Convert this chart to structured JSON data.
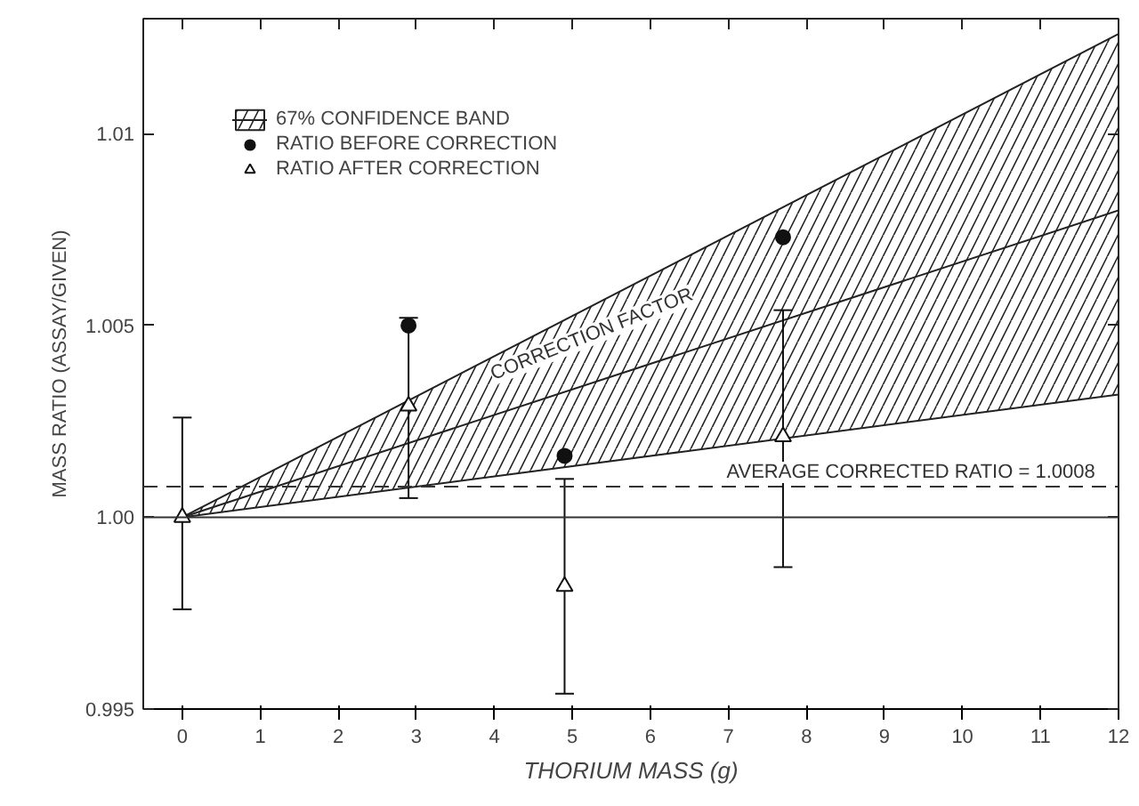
{
  "chart_data": {
    "type": "scatter",
    "xlabel": "THORIUM MASS (g)",
    "ylabel": "MASS RATIO (ASSAY/GIVEN)",
    "xlim": [
      -0.5,
      12
    ],
    "ylim": [
      0.995,
      1.013
    ],
    "xticks": [
      0,
      1,
      2,
      3,
      4,
      5,
      6,
      7,
      8,
      9,
      10,
      11,
      12
    ],
    "yticks": [
      0.995,
      {
        "value": 1.0,
        "label": "1.00"
      },
      1.005,
      1.01
    ],
    "series": [
      {
        "name": "67% CONFIDENCE BAND",
        "type": "line",
        "color": "#222222",
        "x": [
          0,
          12
        ],
        "values": [
          1.0,
          1.008
        ],
        "lower": [
          1.0,
          1.0032
        ],
        "upper": [
          1.0,
          1.0126
        ],
        "marker": "none",
        "line_style": "solid"
      },
      {
        "name": "RATIO BEFORE CORRECTION",
        "color": "#111111",
        "marker": "circle",
        "x": [
          2.9,
          4.9,
          7.7
        ],
        "values": [
          1.005,
          1.0016,
          1.0073
        ]
      },
      {
        "name": "RATIO AFTER CORRECTION",
        "color": "#111111",
        "marker": "triangle",
        "x": [
          0,
          2.9,
          4.9,
          7.7
        ],
        "values": [
          1.0,
          1.0029,
          0.9982,
          1.0021
        ],
        "errors": [
          [
            0.9976,
            1.0026
          ],
          [
            1.0005,
            1.0052
          ],
          [
            0.9954,
            1.001
          ],
          [
            0.9987,
            1.0054
          ]
        ]
      }
    ],
    "ref_lines": [
      {
        "axis": "y",
        "value": 1.0008,
        "label": "AVERAGE CORRECTED RATIO = 1.0008",
        "line_style": "dashed",
        "color": "#333333"
      },
      {
        "axis": "y",
        "value": 1.0,
        "label": null,
        "line_style": "solid",
        "color": "#333333"
      }
    ],
    "annotations": [
      "CORRECTION FACTOR"
    ],
    "legend": "top left",
    "grid": false
  }
}
